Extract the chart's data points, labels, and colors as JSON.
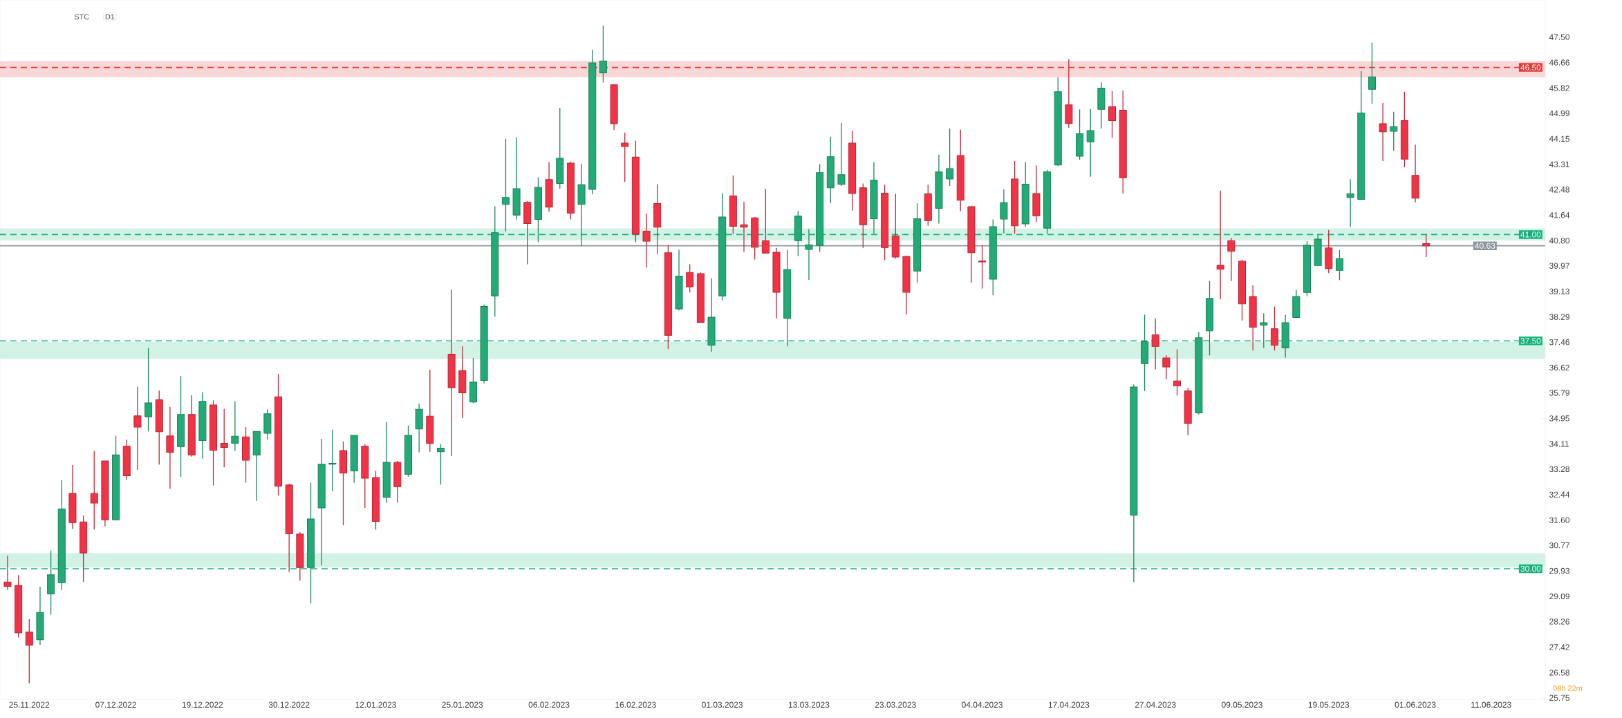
{
  "chart_data": {
    "type": "candlestick",
    "categories": [
      null,
      null,
      "25.11.2022",
      null,
      null,
      null,
      null,
      null,
      null,
      null,
      "07.12.2022",
      null,
      null,
      null,
      null,
      null,
      null,
      null,
      "19.12.2022",
      null,
      null,
      null,
      null,
      null,
      null,
      null,
      "30.12.2022",
      null,
      null,
      null,
      null,
      null,
      null,
      null,
      "12.01.2023",
      null,
      null,
      null,
      null,
      null,
      null,
      null,
      "25.01.2023",
      null,
      null,
      null,
      null,
      null,
      null,
      null,
      "06.02.2023",
      null,
      null,
      null,
      null,
      null,
      null,
      null,
      "16.02.2023",
      null,
      null,
      null,
      null,
      null,
      null,
      null,
      "01.03.2023",
      null,
      null,
      null,
      null,
      null,
      null,
      null,
      "13.03.2023",
      null,
      null,
      null,
      null,
      null,
      null,
      null,
      "23.03.2023",
      null,
      null,
      null,
      null,
      null,
      null,
      null,
      "04.04.2023",
      null,
      null,
      null,
      null,
      null,
      null,
      null,
      "17.04.2023",
      null,
      null,
      null,
      null,
      null,
      null,
      null,
      "27.04.2023",
      null,
      null,
      null,
      null,
      null,
      null,
      null,
      "09.05.2023",
      null,
      null,
      null,
      null,
      null,
      null,
      null,
      "19.05.2023",
      null,
      null,
      null,
      null,
      null,
      null,
      null,
      "01.06.2023",
      null,
      null,
      null,
      null,
      null,
      null,
      "11.06.2023",
      null,
      null,
      null,
      null
    ],
    "ohlc": [
      [
        29.56,
        30.43,
        29.3,
        29.42
      ],
      [
        29.45,
        29.79,
        27.74,
        27.89
      ],
      [
        27.92,
        28.34,
        26.23,
        27.48
      ],
      [
        27.66,
        29.4,
        27.5,
        28.56
      ],
      [
        29.17,
        30.6,
        28.49,
        29.8
      ],
      [
        29.54,
        32.91,
        29.3,
        31.97
      ],
      [
        32.48,
        33.41,
        31.31,
        31.52
      ],
      [
        31.54,
        31.75,
        29.57,
        30.52
      ],
      [
        32.48,
        33.88,
        31.29,
        32.16
      ],
      [
        33.55,
        33.55,
        31.4,
        31.61
      ],
      [
        31.61,
        34.38,
        31.61,
        33.75
      ],
      [
        34.03,
        34.25,
        32.93,
        33.06
      ],
      [
        35.03,
        35.99,
        33.25,
        34.66
      ],
      [
        35.0,
        37.27,
        34.52,
        35.46
      ],
      [
        35.56,
        35.86,
        33.43,
        34.51
      ],
      [
        34.37,
        35.33,
        32.63,
        33.83
      ],
      [
        34.02,
        36.34,
        33.02,
        35.08
      ],
      [
        35.08,
        35.71,
        33.69,
        33.74
      ],
      [
        34.22,
        35.81,
        33.62,
        35.51
      ],
      [
        35.39,
        35.54,
        32.74,
        33.9
      ],
      [
        34.13,
        35.26,
        33.34,
        33.99
      ],
      [
        34.13,
        35.51,
        33.88,
        34.36
      ],
      [
        34.34,
        34.66,
        32.83,
        33.57
      ],
      [
        33.74,
        34.52,
        32.23,
        34.52
      ],
      [
        34.46,
        35.25,
        34.25,
        35.1
      ],
      [
        35.66,
        36.41,
        32.41,
        32.72
      ],
      [
        32.76,
        32.8,
        29.89,
        31.15
      ],
      [
        31.14,
        31.2,
        29.61,
        30.04
      ],
      [
        30.04,
        32.83,
        28.86,
        31.64
      ],
      [
        32.0,
        34.27,
        30.11,
        33.44
      ],
      [
        33.44,
        34.58,
        32.55,
        33.47
      ],
      [
        33.89,
        34.19,
        31.43,
        33.15
      ],
      [
        33.22,
        34.39,
        32.83,
        34.39
      ],
      [
        34.03,
        34.1,
        32.0,
        32.98
      ],
      [
        33.0,
        33.22,
        31.29,
        31.56
      ],
      [
        32.35,
        34.84,
        32.17,
        33.5
      ],
      [
        33.5,
        33.55,
        32.17,
        32.7
      ],
      [
        33.11,
        34.71,
        33.03,
        34.39
      ],
      [
        34.6,
        35.43,
        33.83,
        35.25
      ],
      [
        35.02,
        36.55,
        33.85,
        34.13
      ],
      [
        33.85,
        34.1,
        32.77,
        33.97
      ],
      [
        37.06,
        39.19,
        33.71,
        35.96
      ],
      [
        36.52,
        37.32,
        34.96,
        35.79
      ],
      [
        35.49,
        36.94,
        35.45,
        36.14
      ],
      [
        36.2,
        38.7,
        36.1,
        38.63
      ],
      [
        38.98,
        41.93,
        38.29,
        41.06
      ],
      [
        41.99,
        44.15,
        41.1,
        42.22
      ],
      [
        41.64,
        44.2,
        41.5,
        42.51
      ],
      [
        42.06,
        42.1,
        40.02,
        41.36
      ],
      [
        41.5,
        42.88,
        40.75,
        42.55
      ],
      [
        42.81,
        43.38,
        41.75,
        41.9
      ],
      [
        42.68,
        45.17,
        42.51,
        43.51
      ],
      [
        43.35,
        43.4,
        41.5,
        41.7
      ],
      [
        41.99,
        43.33,
        40.63,
        42.64
      ],
      [
        42.49,
        47.08,
        42.32,
        46.65
      ],
      [
        46.32,
        47.88,
        46.0,
        46.71
      ],
      [
        45.93,
        45.95,
        44.44,
        44.65
      ],
      [
        44.01,
        44.35,
        42.73,
        43.9
      ],
      [
        43.55,
        44.09,
        40.75,
        41.01
      ],
      [
        41.11,
        41.69,
        39.91,
        40.78
      ],
      [
        42.02,
        42.66,
        40.35,
        41.24
      ],
      [
        40.4,
        40.66,
        37.23,
        37.68
      ],
      [
        38.55,
        40.5,
        38.5,
        39.63
      ],
      [
        39.75,
        40.02,
        39.09,
        39.28
      ],
      [
        39.71,
        39.75,
        38.11,
        38.11
      ],
      [
        37.36,
        39.56,
        37.14,
        38.28
      ],
      [
        38.98,
        42.36,
        38.83,
        41.58
      ],
      [
        42.27,
        42.95,
        41.02,
        41.27
      ],
      [
        41.32,
        42.07,
        40.43,
        41.24
      ],
      [
        41.55,
        41.58,
        40.18,
        40.58
      ],
      [
        40.8,
        42.5,
        40.37,
        40.39
      ],
      [
        40.42,
        40.56,
        38.24,
        39.1
      ],
      [
        38.24,
        40.49,
        37.32,
        39.85
      ],
      [
        40.8,
        41.78,
        40.29,
        41.61
      ],
      [
        40.51,
        41.18,
        39.5,
        40.66
      ],
      [
        40.64,
        43.32,
        40.43,
        43.04
      ],
      [
        42.54,
        44.22,
        42.03,
        43.56
      ],
      [
        42.65,
        44.67,
        42.6,
        42.97
      ],
      [
        44.01,
        44.42,
        41.79,
        42.35
      ],
      [
        42.54,
        42.68,
        40.56,
        41.32
      ],
      [
        41.52,
        43.38,
        41.02,
        42.79
      ],
      [
        42.36,
        42.64,
        40.16,
        40.57
      ],
      [
        40.96,
        42.34,
        40.21,
        40.26
      ],
      [
        40.28,
        40.3,
        38.37,
        39.1
      ],
      [
        39.8,
        42.03,
        39.41,
        41.52
      ],
      [
        42.34,
        42.64,
        41.29,
        41.46
      ],
      [
        41.86,
        43.63,
        41.36,
        43.06
      ],
      [
        42.83,
        44.49,
        42.6,
        43.17
      ],
      [
        43.6,
        44.45,
        41.77,
        42.13
      ],
      [
        41.92,
        41.95,
        39.42,
        40.4
      ],
      [
        40.13,
        40.65,
        39.22,
        40.1
      ],
      [
        39.53,
        41.5,
        39.0,
        41.26
      ],
      [
        41.51,
        42.49,
        41.03,
        42.05
      ],
      [
        42.83,
        43.42,
        41.03,
        41.29
      ],
      [
        41.35,
        43.38,
        41.25,
        42.66
      ],
      [
        42.35,
        43.27,
        41.41,
        41.62
      ],
      [
        41.21,
        43.13,
        41.03,
        43.06
      ],
      [
        43.29,
        46.18,
        43.25,
        45.7
      ],
      [
        45.27,
        46.77,
        44.52,
        44.66
      ],
      [
        43.58,
        45.12,
        43.46,
        44.32
      ],
      [
        44.05,
        45.13,
        42.9,
        44.42
      ],
      [
        45.12,
        46.01,
        44.49,
        45.82
      ],
      [
        45.21,
        45.72,
        44.18,
        44.75
      ],
      [
        45.09,
        45.74,
        42.35,
        42.87
      ],
      [
        31.76,
        36.06,
        29.56,
        35.98
      ],
      [
        36.75,
        38.36,
        35.85,
        37.48
      ],
      [
        37.7,
        38.24,
        36.56,
        37.32
      ],
      [
        36.94,
        37.03,
        36.23,
        36.64
      ],
      [
        36.18,
        37.22,
        35.7,
        36.02
      ],
      [
        35.85,
        35.95,
        34.39,
        34.78
      ],
      [
        35.13,
        37.79,
        35.08,
        37.6
      ],
      [
        37.83,
        39.47,
        37.02,
        38.9
      ],
      [
        39.99,
        42.45,
        38.87,
        39.86
      ],
      [
        40.8,
        40.89,
        39.47,
        40.45
      ],
      [
        40.12,
        40.17,
        38.17,
        38.72
      ],
      [
        38.96,
        39.33,
        37.18,
        37.95
      ],
      [
        38.02,
        38.41,
        37.27,
        38.1
      ],
      [
        37.9,
        38.63,
        37.18,
        37.36
      ],
      [
        37.27,
        38.36,
        36.95,
        38.1
      ],
      [
        38.27,
        39.18,
        38.25,
        38.96
      ],
      [
        39.09,
        40.78,
        38.97,
        40.65
      ],
      [
        39.98,
        40.99,
        39.96,
        40.85
      ],
      [
        40.56,
        41.15,
        39.73,
        39.88
      ],
      [
        39.82,
        40.49,
        39.5,
        40.21
      ],
      [
        42.22,
        42.82,
        41.24,
        42.34
      ],
      [
        42.16,
        46.38,
        42.14,
        45.0
      ],
      [
        45.78,
        47.32,
        45.3,
        46.19
      ],
      [
        44.65,
        45.33,
        43.42,
        44.38
      ],
      [
        44.4,
        45.04,
        43.76,
        44.55
      ],
      [
        44.75,
        45.7,
        43.22,
        43.48
      ],
      [
        42.95,
        43.96,
        42.06,
        42.2
      ],
      [
        40.7,
        41.0,
        40.26,
        40.63
      ],
      null,
      null,
      null,
      null,
      null,
      null,
      null,
      null,
      null,
      null
    ],
    "colors": [
      "#f23346",
      "#f23346",
      "#f23346",
      "#22ab76",
      "#22ab76",
      "#22ab76",
      "#f23346",
      "#f23346",
      "#f23346",
      "#f23346",
      "#22ab76",
      "#f23346",
      "#f23346",
      "#22ab76",
      "#f23346",
      "#f23346",
      "#22ab76",
      "#f23346",
      "#22ab76",
      "#f23346",
      "#f23346",
      "#22ab76",
      "#f23346",
      "#22ab76",
      "#22ab76",
      "#f23346",
      "#f23346",
      "#f23346",
      "#22ab76",
      "#22ab76",
      "#22ab76",
      "#f23346",
      "#22ab76",
      "#f23346",
      "#f23346",
      "#22ab76",
      "#f23346",
      "#22ab76",
      "#22ab76",
      "#f23346",
      "#22ab76",
      "#f23346",
      "#f23346",
      "#22ab76",
      "#22ab76",
      "#22ab76",
      "#22ab76",
      "#22ab76",
      "#f23346",
      "#22ab76",
      "#f23346",
      "#22ab76",
      "#f23346",
      "#22ab76",
      "#22ab76",
      "#22ab76",
      "#f23346",
      "#f23346",
      "#f23346",
      "#f23346",
      "#f23346",
      "#f23346",
      "#22ab76",
      "#f23346",
      "#f23346",
      "#22ab76",
      "#22ab76",
      "#f23346",
      "#f23346",
      "#f23346",
      "#f23346",
      "#f23346",
      "#22ab76",
      "#22ab76",
      "#22ab76",
      "#22ab76",
      "#22ab76",
      "#22ab76",
      "#f23346",
      "#f23346",
      "#22ab76",
      "#f23346",
      "#f23346",
      "#f23346",
      "#22ab76",
      "#f23346",
      "#22ab76",
      "#22ab76",
      "#f23346",
      "#f23346",
      "#f23346",
      "#22ab76",
      "#22ab76",
      "#f23346",
      "#22ab76",
      "#f23346",
      "#22ab76",
      "#22ab76",
      "#f23346",
      "#22ab76",
      "#22ab76",
      "#22ab76",
      "#f23346",
      "#f23346",
      "#22ab76",
      "#22ab76",
      "#f23346",
      "#f23346",
      "#f23346",
      "#f23346",
      "#22ab76",
      "#22ab76",
      "#f23346",
      "#f23346",
      "#f23346",
      "#f23346",
      "#22ab76",
      "#f23346",
      "#22ab76",
      "#22ab76",
      "#22ab76",
      "#22ab76",
      "#f23346",
      "#22ab76",
      "#22ab76",
      "#22ab76",
      "#22ab76",
      "#f23346",
      "#22ab76",
      "#f23346",
      "#f23346",
      "#f23346",
      null,
      null,
      null,
      null,
      null,
      null,
      null,
      null,
      null,
      null
    ],
    "ylim": [
      25.7,
      48.72
    ],
    "yticks": [
      {
        "value": 25.75,
        "label": "25.75"
      },
      {
        "value": 26.58,
        "label": "26.58"
      },
      {
        "value": 27.42,
        "label": "27.42"
      },
      {
        "value": 28.26,
        "label": "28.26"
      },
      {
        "value": 29.09,
        "label": "29.09"
      },
      {
        "value": 29.93,
        "label": "29.93"
      },
      {
        "value": 30.77,
        "label": "30.77"
      },
      {
        "value": 31.6,
        "label": "31.60"
      },
      {
        "value": 32.44,
        "label": "32.44"
      },
      {
        "value": 33.28,
        "label": "33.28"
      },
      {
        "value": 34.11,
        "label": "34.11"
      },
      {
        "value": 34.95,
        "label": "34.95"
      },
      {
        "value": 35.79,
        "label": "35.79"
      },
      {
        "value": 36.62,
        "label": "36.62"
      },
      {
        "value": 37.46,
        "label": "37.46"
      },
      {
        "value": 38.29,
        "label": "38.29"
      },
      {
        "value": 39.13,
        "label": "39.13"
      },
      {
        "value": 39.97,
        "label": "39.97"
      },
      {
        "value": 40.8,
        "label": "40.80"
      },
      {
        "value": 41.64,
        "label": "41.64"
      },
      {
        "value": 42.48,
        "label": "42.48"
      },
      {
        "value": 43.31,
        "label": "43.31"
      },
      {
        "value": 44.15,
        "label": "44.15"
      },
      {
        "value": 44.99,
        "label": "44.99"
      },
      {
        "value": 45.82,
        "label": "45.82"
      },
      {
        "value": 46.66,
        "label": "46.66"
      },
      {
        "value": 47.5,
        "label": "47.50"
      }
    ],
    "bands": [
      {
        "axis": "y",
        "from": 46.18,
        "to": 46.71,
        "color": "#fad7d7"
      },
      {
        "axis": "y",
        "from": 40.81,
        "to": 41.2,
        "color": "#d3f2e6"
      },
      {
        "axis": "y",
        "from": 36.91,
        "to": 37.46,
        "color": "#d3f2e6"
      },
      {
        "axis": "y",
        "from": 30.04,
        "to": 30.51,
        "color": "#d3f2e6"
      }
    ],
    "ref_lines": [
      {
        "axis": "y",
        "value": 46.5,
        "label": "46.50",
        "color": "#e53935",
        "line_style": "dashed"
      },
      {
        "axis": "y",
        "value": 41.0,
        "label": "41.00",
        "color": "#17b27a",
        "line_style": "dashed"
      },
      {
        "axis": "y",
        "value": 37.5,
        "label": "37.50",
        "color": "#17b27a",
        "line_style": "dashed"
      },
      {
        "axis": "y",
        "value": 30.0,
        "label": "30.00",
        "color": "#17b27a",
        "line_style": "dashed"
      },
      {
        "axis": "y",
        "value": 40.63,
        "label": "40.63",
        "color": "#8c969c",
        "line_style": "solid"
      }
    ],
    "annotations": [
      "STC",
      "D1",
      "08h 22m"
    ]
  }
}
